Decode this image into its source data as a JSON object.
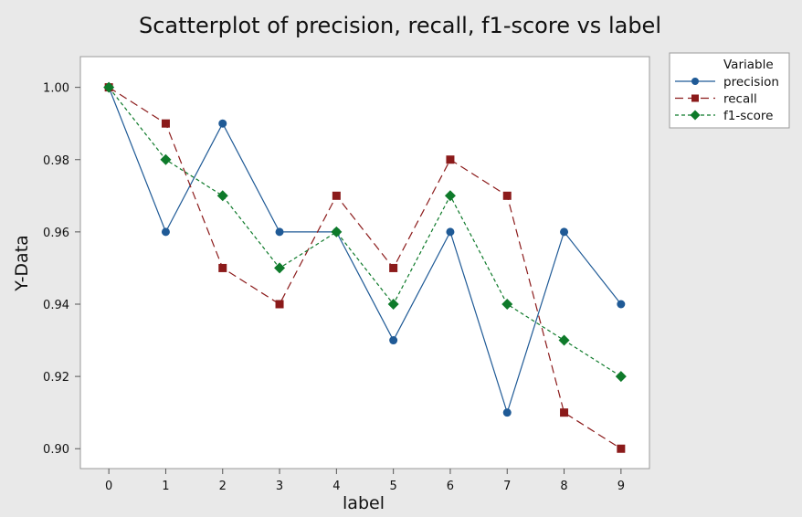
{
  "chart_data": {
    "type": "line",
    "title": "Scatterplot of precision, recall, f1-score vs label",
    "xlabel": "label",
    "ylabel": "Y-Data",
    "x": [
      0,
      1,
      2,
      3,
      4,
      5,
      6,
      7,
      8,
      9
    ],
    "xlim": [
      -0.5,
      9.5
    ],
    "ylim": [
      0.8945,
      1.0085
    ],
    "yticks": [
      0.9,
      0.92,
      0.94,
      0.96,
      0.98,
      1.0
    ],
    "ytick_labels": [
      "0.90",
      "0.92",
      "0.94",
      "0.96",
      "0.98",
      "1.00"
    ],
    "xtick_labels": [
      "0",
      "1",
      "2",
      "3",
      "4",
      "5",
      "6",
      "7",
      "8",
      "9"
    ],
    "grid": false,
    "legend": {
      "title": "Variable",
      "placement": "top-right, outside plot"
    },
    "series": [
      {
        "name": "precision",
        "values": [
          1.0,
          0.96,
          0.99,
          0.96,
          0.96,
          0.93,
          0.96,
          0.91,
          0.96,
          0.94
        ],
        "color": "#1f5a96",
        "marker": "circle",
        "line": "solid"
      },
      {
        "name": "recall",
        "values": [
          1.0,
          0.99,
          0.95,
          0.94,
          0.97,
          0.95,
          0.98,
          0.97,
          0.91,
          0.9
        ],
        "color": "#8b1a1a",
        "marker": "square",
        "line": "dashed"
      },
      {
        "name": "f1-score",
        "values": [
          1.0,
          0.98,
          0.97,
          0.95,
          0.96,
          0.94,
          0.97,
          0.94,
          0.93,
          0.92
        ],
        "color": "#0e7a2a",
        "marker": "diamond",
        "line": "dotted"
      }
    ]
  }
}
